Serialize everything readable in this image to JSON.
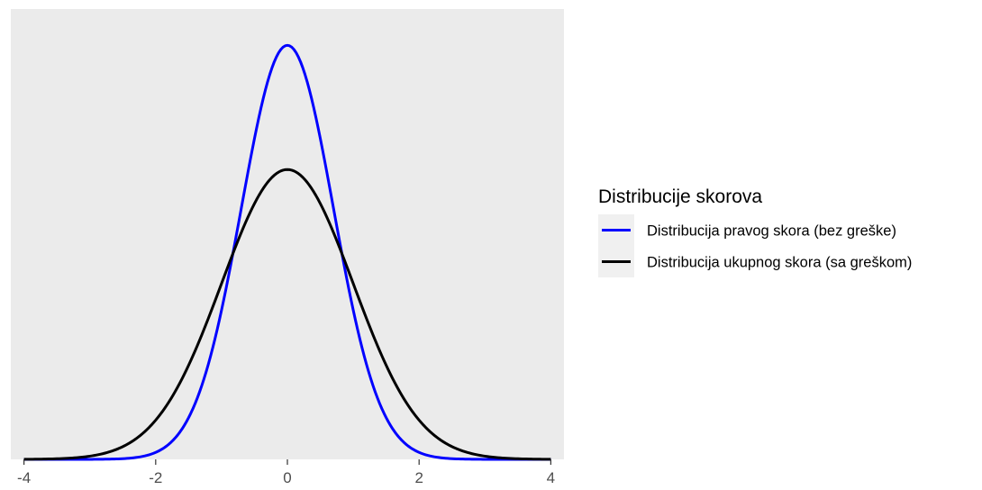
{
  "chart_data": {
    "type": "line",
    "title": "",
    "xlabel": "",
    "ylabel": "",
    "xlim": [
      -4.2,
      4.2
    ],
    "ylim": [
      0,
      0.62
    ],
    "x_ticks": [
      -4,
      -2,
      0,
      2,
      4
    ],
    "x_tick_labels": [
      "-4",
      "-2",
      "0",
      "2",
      "4"
    ],
    "y_ticks": [],
    "grid": false,
    "panel_background": "#ebebeb",
    "legend": {
      "title": "Distribucije skorova",
      "placement": "right",
      "entries": [
        {
          "name": "Distribucija pravog skora (bez greške)",
          "color": "#0000ff"
        },
        {
          "name": "Distribucija ukupnog skora (sa greškom)",
          "color": "#000000"
        }
      ]
    },
    "series": [
      {
        "name": "Distribucija pravog skora (bez greške)",
        "color": "#0000ff",
        "distribution": "normal",
        "mean": 0,
        "sd": 0.7,
        "x_range": [
          -4,
          4
        ],
        "peak_density": 0.57
      },
      {
        "name": "Distribucija ukupnog skora (sa greškom)",
        "color": "#000000",
        "distribution": "normal",
        "mean": 0,
        "sd": 1,
        "x_range": [
          -4,
          4
        ],
        "peak_density": 0.399
      }
    ]
  }
}
